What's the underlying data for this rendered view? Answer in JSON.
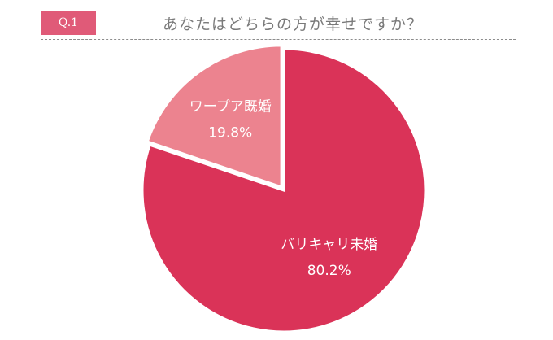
{
  "header": {
    "badge": "Q.1",
    "question": "あなたはどちらの方が幸せですか？"
  },
  "chart_data": {
    "type": "pie",
    "start_angle_deg": 0,
    "direction": "clockwise",
    "slices": [
      {
        "label": "バリキャリ未婚",
        "value": 80.2,
        "value_label": "80.2%",
        "color": "#da3358"
      },
      {
        "label": "ワープア既婚",
        "value": 19.8,
        "value_label": "19.8%",
        "color": "#ec838f"
      }
    ]
  }
}
